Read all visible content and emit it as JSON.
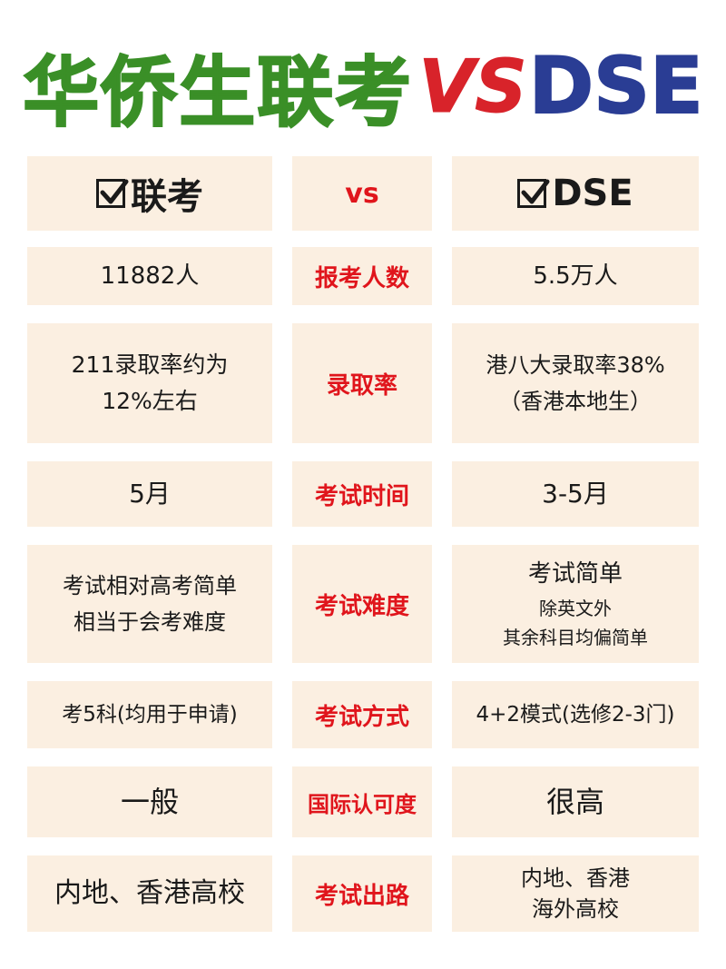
{
  "title": {
    "chinese": "华侨生联考",
    "vs": "VS",
    "dse": "DSE"
  },
  "header": {
    "left": "联考",
    "middle": "VS",
    "right": "DSE"
  },
  "rows": [
    {
      "left": [
        "11882人"
      ],
      "middle": "报考人数",
      "right": [
        "5.5万人"
      ]
    },
    {
      "left": [
        "211录取率约为",
        "12%左右"
      ],
      "middle": "录取率",
      "right": [
        "港八大录取率38%",
        "（香港本地生）"
      ]
    },
    {
      "left": [
        "5月"
      ],
      "middle": "考试时间",
      "right": [
        "3-5月"
      ]
    },
    {
      "left": [
        "考试相对高考简单",
        "相当于会考难度"
      ],
      "middle": "考试难度",
      "right": [
        "考试简单",
        "除英文外",
        "其余科目均偏简单"
      ]
    },
    {
      "left": [
        "考5科(均用于申请)"
      ],
      "middle": "考试方式",
      "right": [
        "4+2模式(选修2-3门)"
      ]
    },
    {
      "left": [
        "一般"
      ],
      "middle": "国际认可度",
      "right": [
        "很高"
      ]
    },
    {
      "left": [
        "内地、香港高校"
      ],
      "middle": "考试出路",
      "right": [
        "内地、香港",
        "海外高校"
      ]
    }
  ],
  "icons": {
    "header_left": "checkbox-checked-icon",
    "header_right": "checkbox-checked-icon"
  },
  "colors": {
    "title_green": "#3a8f27",
    "vs_red": "#d8232a",
    "dse_blue": "#2a3d94",
    "cell_bg": "#fbefe1",
    "label_red": "#e0151c"
  }
}
